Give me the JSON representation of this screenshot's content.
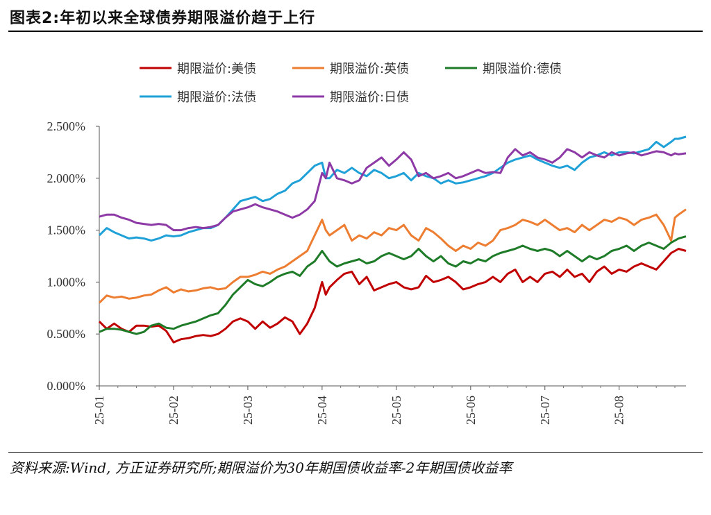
{
  "title": "图表2:年初以来全球债券期限溢价趋于上行",
  "source_note": "资料来源:Wind, 方正证券研究所;期限溢价为30年期国债收益率-2年期国债收益率",
  "chart_data": {
    "type": "line",
    "title": "",
    "xlabel": "",
    "ylabel": "",
    "x_ticks": [
      "25-01",
      "25-02",
      "25-03",
      "25-04",
      "25-05",
      "25-06",
      "25-07",
      "25-08"
    ],
    "y_ticks": [
      "0.000%",
      "0.500%",
      "1.000%",
      "1.500%",
      "2.000%",
      "2.500%"
    ],
    "ylim": [
      0,
      2.5
    ],
    "xlim": [
      0,
      7.9
    ],
    "legend_position": "top",
    "grid": false,
    "series": [
      {
        "name": "期限溢价:美债",
        "color": "#c00000",
        "x": [
          0,
          0.1,
          0.2,
          0.3,
          0.4,
          0.5,
          0.6,
          0.7,
          0.8,
          0.9,
          1.0,
          1.1,
          1.2,
          1.3,
          1.4,
          1.5,
          1.6,
          1.7,
          1.8,
          1.9,
          2.0,
          2.1,
          2.2,
          2.3,
          2.4,
          2.5,
          2.6,
          2.7,
          2.8,
          2.9,
          3.0,
          3.05,
          3.1,
          3.2,
          3.3,
          3.4,
          3.5,
          3.6,
          3.7,
          3.8,
          3.9,
          4.0,
          4.1,
          4.2,
          4.3,
          4.4,
          4.5,
          4.6,
          4.7,
          4.8,
          4.9,
          5.0,
          5.1,
          5.2,
          5.3,
          5.4,
          5.5,
          5.6,
          5.7,
          5.8,
          5.9,
          6.0,
          6.1,
          6.2,
          6.3,
          6.4,
          6.5,
          6.6,
          6.7,
          6.8,
          6.9,
          7.0,
          7.1,
          7.2,
          7.3,
          7.4,
          7.5,
          7.6,
          7.7,
          7.75,
          7.8,
          7.9
        ],
        "y": [
          0.62,
          0.55,
          0.6,
          0.55,
          0.52,
          0.58,
          0.58,
          0.57,
          0.58,
          0.53,
          0.42,
          0.45,
          0.46,
          0.48,
          0.49,
          0.48,
          0.5,
          0.55,
          0.62,
          0.65,
          0.62,
          0.55,
          0.62,
          0.56,
          0.6,
          0.66,
          0.62,
          0.5,
          0.6,
          0.75,
          1.0,
          0.88,
          0.95,
          1.02,
          1.08,
          1.1,
          0.98,
          1.05,
          0.92,
          0.95,
          0.98,
          1.0,
          0.95,
          0.93,
          0.95,
          1.06,
          1.0,
          1.02,
          1.05,
          1.0,
          0.93,
          0.95,
          0.98,
          1.0,
          1.05,
          1.0,
          1.08,
          1.12,
          1.0,
          1.05,
          1.0,
          1.08,
          1.1,
          1.05,
          1.12,
          1.05,
          1.08,
          1.0,
          1.1,
          1.15,
          1.08,
          1.12,
          1.1,
          1.15,
          1.18,
          1.15,
          1.12,
          1.2,
          1.28,
          1.3,
          1.32,
          1.3
        ]
      },
      {
        "name": "期限溢价:英债",
        "color": "#ed7d31",
        "x": [
          0,
          0.1,
          0.2,
          0.3,
          0.4,
          0.5,
          0.6,
          0.7,
          0.8,
          0.9,
          1.0,
          1.1,
          1.2,
          1.3,
          1.4,
          1.5,
          1.6,
          1.7,
          1.8,
          1.9,
          2.0,
          2.1,
          2.2,
          2.3,
          2.4,
          2.5,
          2.6,
          2.7,
          2.8,
          2.9,
          3.0,
          3.05,
          3.1,
          3.2,
          3.3,
          3.4,
          3.5,
          3.6,
          3.7,
          3.8,
          3.9,
          4.0,
          4.1,
          4.2,
          4.3,
          4.4,
          4.5,
          4.6,
          4.7,
          4.8,
          4.9,
          5.0,
          5.1,
          5.2,
          5.3,
          5.4,
          5.5,
          5.6,
          5.7,
          5.8,
          5.9,
          6.0,
          6.1,
          6.2,
          6.3,
          6.4,
          6.5,
          6.6,
          6.7,
          6.8,
          6.9,
          7.0,
          7.1,
          7.2,
          7.3,
          7.4,
          7.5,
          7.6,
          7.7,
          7.75,
          7.8,
          7.9
        ],
        "y": [
          0.8,
          0.87,
          0.85,
          0.86,
          0.84,
          0.85,
          0.87,
          0.88,
          0.92,
          0.95,
          0.9,
          0.93,
          0.91,
          0.92,
          0.94,
          0.95,
          0.93,
          0.94,
          1.0,
          1.05,
          1.05,
          1.07,
          1.1,
          1.08,
          1.12,
          1.15,
          1.2,
          1.25,
          1.3,
          1.45,
          1.6,
          1.5,
          1.45,
          1.5,
          1.55,
          1.4,
          1.45,
          1.42,
          1.48,
          1.45,
          1.52,
          1.5,
          1.55,
          1.45,
          1.4,
          1.52,
          1.48,
          1.42,
          1.35,
          1.3,
          1.35,
          1.32,
          1.38,
          1.35,
          1.4,
          1.5,
          1.52,
          1.55,
          1.6,
          1.58,
          1.55,
          1.6,
          1.55,
          1.5,
          1.52,
          1.48,
          1.55,
          1.5,
          1.55,
          1.6,
          1.58,
          1.62,
          1.6,
          1.55,
          1.6,
          1.62,
          1.65,
          1.55,
          1.4,
          1.62,
          1.65,
          1.7
        ]
      },
      {
        "name": "期限溢价:德债",
        "color": "#1e7b28",
        "x": [
          0,
          0.1,
          0.2,
          0.3,
          0.4,
          0.5,
          0.6,
          0.7,
          0.8,
          0.9,
          1.0,
          1.1,
          1.2,
          1.3,
          1.4,
          1.5,
          1.6,
          1.7,
          1.8,
          1.9,
          2.0,
          2.1,
          2.2,
          2.3,
          2.4,
          2.5,
          2.6,
          2.7,
          2.8,
          2.9,
          3.0,
          3.05,
          3.1,
          3.2,
          3.3,
          3.4,
          3.5,
          3.6,
          3.7,
          3.8,
          3.9,
          4.0,
          4.1,
          4.2,
          4.3,
          4.4,
          4.5,
          4.6,
          4.7,
          4.8,
          4.9,
          5.0,
          5.1,
          5.2,
          5.3,
          5.4,
          5.5,
          5.6,
          5.7,
          5.8,
          5.9,
          6.0,
          6.1,
          6.2,
          6.3,
          6.4,
          6.5,
          6.6,
          6.7,
          6.8,
          6.9,
          7.0,
          7.1,
          7.2,
          7.3,
          7.4,
          7.5,
          7.6,
          7.7,
          7.75,
          7.8,
          7.9
        ],
        "y": [
          0.52,
          0.55,
          0.55,
          0.54,
          0.52,
          0.5,
          0.52,
          0.58,
          0.6,
          0.56,
          0.55,
          0.58,
          0.6,
          0.62,
          0.65,
          0.68,
          0.7,
          0.78,
          0.88,
          0.95,
          1.02,
          0.98,
          0.96,
          1.0,
          1.05,
          1.08,
          1.1,
          1.06,
          1.15,
          1.2,
          1.3,
          1.25,
          1.2,
          1.15,
          1.18,
          1.2,
          1.22,
          1.18,
          1.2,
          1.25,
          1.28,
          1.25,
          1.22,
          1.25,
          1.32,
          1.25,
          1.2,
          1.25,
          1.18,
          1.15,
          1.2,
          1.18,
          1.22,
          1.2,
          1.25,
          1.28,
          1.3,
          1.32,
          1.35,
          1.32,
          1.3,
          1.32,
          1.3,
          1.25,
          1.3,
          1.25,
          1.2,
          1.25,
          1.22,
          1.25,
          1.3,
          1.32,
          1.35,
          1.3,
          1.35,
          1.38,
          1.35,
          1.32,
          1.38,
          1.4,
          1.42,
          1.44
        ]
      },
      {
        "name": "期限溢价:法债",
        "color": "#1fa1d8",
        "x": [
          0,
          0.1,
          0.2,
          0.3,
          0.4,
          0.5,
          0.6,
          0.7,
          0.8,
          0.9,
          1.0,
          1.1,
          1.2,
          1.3,
          1.4,
          1.5,
          1.6,
          1.7,
          1.8,
          1.9,
          2.0,
          2.1,
          2.2,
          2.3,
          2.4,
          2.5,
          2.6,
          2.7,
          2.8,
          2.9,
          3.0,
          3.05,
          3.1,
          3.2,
          3.3,
          3.4,
          3.5,
          3.6,
          3.7,
          3.8,
          3.9,
          4.0,
          4.1,
          4.2,
          4.3,
          4.4,
          4.5,
          4.6,
          4.7,
          4.8,
          4.9,
          5.0,
          5.1,
          5.2,
          5.3,
          5.4,
          5.5,
          5.6,
          5.7,
          5.8,
          5.9,
          6.0,
          6.1,
          6.2,
          6.3,
          6.4,
          6.5,
          6.6,
          6.7,
          6.8,
          6.9,
          7.0,
          7.1,
          7.2,
          7.3,
          7.4,
          7.5,
          7.6,
          7.7,
          7.75,
          7.8,
          7.9
        ],
        "y": [
          1.45,
          1.52,
          1.48,
          1.45,
          1.42,
          1.43,
          1.42,
          1.4,
          1.42,
          1.45,
          1.44,
          1.45,
          1.48,
          1.5,
          1.52,
          1.52,
          1.55,
          1.62,
          1.7,
          1.78,
          1.8,
          1.82,
          1.78,
          1.8,
          1.85,
          1.88,
          1.95,
          1.98,
          2.05,
          2.12,
          2.15,
          2.0,
          2.0,
          2.08,
          2.05,
          2.1,
          2.05,
          2.02,
          2.08,
          2.05,
          2.0,
          2.02,
          2.05,
          1.98,
          2.05,
          2.02,
          2.0,
          1.95,
          1.98,
          1.95,
          1.96,
          1.98,
          2.0,
          2.02,
          2.05,
          2.1,
          2.15,
          2.18,
          2.2,
          2.22,
          2.18,
          2.15,
          2.12,
          2.1,
          2.12,
          2.08,
          2.15,
          2.2,
          2.22,
          2.25,
          2.22,
          2.25,
          2.25,
          2.24,
          2.26,
          2.28,
          2.35,
          2.3,
          2.35,
          2.38,
          2.38,
          2.4
        ]
      },
      {
        "name": "期限溢价:日债",
        "color": "#8e3aa6",
        "x": [
          0,
          0.1,
          0.2,
          0.3,
          0.4,
          0.5,
          0.6,
          0.7,
          0.8,
          0.9,
          1.0,
          1.1,
          1.2,
          1.3,
          1.4,
          1.5,
          1.6,
          1.7,
          1.8,
          1.9,
          2.0,
          2.1,
          2.2,
          2.3,
          2.4,
          2.5,
          2.6,
          2.7,
          2.8,
          2.9,
          3.0,
          3.05,
          3.1,
          3.2,
          3.3,
          3.4,
          3.5,
          3.6,
          3.7,
          3.8,
          3.9,
          4.0,
          4.1,
          4.2,
          4.3,
          4.4,
          4.5,
          4.6,
          4.7,
          4.8,
          4.9,
          5.0,
          5.1,
          5.2,
          5.3,
          5.4,
          5.5,
          5.6,
          5.7,
          5.8,
          5.9,
          6.0,
          6.1,
          6.2,
          6.3,
          6.4,
          6.5,
          6.6,
          6.7,
          6.8,
          6.9,
          7.0,
          7.1,
          7.2,
          7.3,
          7.4,
          7.5,
          7.6,
          7.7,
          7.75,
          7.8,
          7.9
        ],
        "y": [
          1.63,
          1.65,
          1.65,
          1.62,
          1.6,
          1.57,
          1.56,
          1.55,
          1.56,
          1.55,
          1.5,
          1.5,
          1.52,
          1.53,
          1.52,
          1.53,
          1.55,
          1.62,
          1.68,
          1.7,
          1.72,
          1.75,
          1.72,
          1.7,
          1.68,
          1.65,
          1.62,
          1.65,
          1.7,
          1.78,
          2.05,
          2.0,
          2.15,
          2.0,
          1.98,
          1.95,
          1.98,
          2.1,
          2.15,
          2.2,
          2.12,
          2.18,
          2.25,
          2.18,
          2.02,
          2.05,
          2.0,
          2.02,
          2.05,
          2.0,
          2.02,
          2.05,
          2.08,
          2.05,
          2.06,
          2.05,
          2.2,
          2.28,
          2.22,
          2.25,
          2.2,
          2.18,
          2.15,
          2.2,
          2.28,
          2.25,
          2.2,
          2.25,
          2.22,
          2.2,
          2.25,
          2.22,
          2.24,
          2.25,
          2.22,
          2.24,
          2.26,
          2.25,
          2.22,
          2.24,
          2.23,
          2.24
        ]
      }
    ]
  }
}
